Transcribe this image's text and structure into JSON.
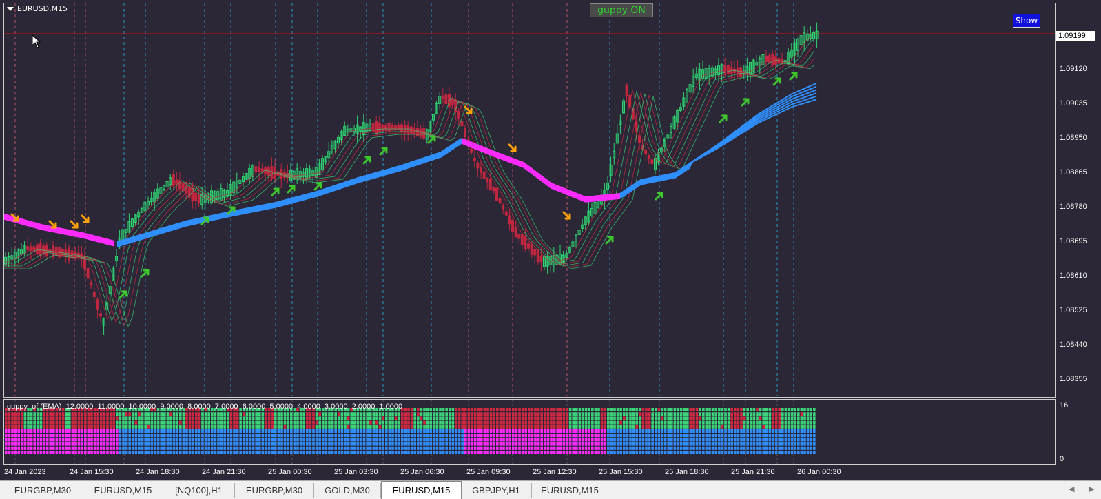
{
  "chart": {
    "symbol_title": "EURUSD,M15",
    "guppy_button_label": "guppy ON",
    "show_button_label": "Show",
    "current_price": "1.09199",
    "price_axis_labels": [
      "1.09120",
      "1.09035",
      "1.08950",
      "1.08865",
      "1.08780",
      "1.08695",
      "1.08610",
      "1.08525",
      "1.08440",
      "1.08355"
    ],
    "indicator_title": "guppy  of (EMA)  12.0000  11.0000  10.0000  9.0000  8.0000  7.0000  6.0000  5.0000  4.0000  3.0000  2.0000  1.0000",
    "indicator_scale_top": "16",
    "indicator_scale_bottom": "0",
    "time_labels": [
      "24 Jan 2023",
      "24 Jan 15:30",
      "24 Jan 18:30",
      "24 Jan 21:30",
      "25 Jan 00:30",
      "25 Jan 03:30",
      "25 Jan 06:30",
      "25 Jan 09:30",
      "25 Jan 12:30",
      "25 Jan 15:30",
      "25 Jan 18:30",
      "25 Jan 21:30",
      "26 Jan 00:30"
    ],
    "colors": {
      "background": "#2b2736",
      "bull_candle": "#2ed573",
      "bear_candle": "#c0263f",
      "short_ema_bull": "#3cd47a",
      "short_ema_bear": "#d02840",
      "long_ema_bull": "#2f8fff",
      "long_ema_bear": "#ff2bff",
      "buy_arrow": "#3ec62c",
      "sell_arrow": "#ffa20a",
      "current_price_line": "#d01010"
    }
  },
  "tabs": [
    {
      "label": "EURGBP,M30",
      "active": false
    },
    {
      "label": "EURUSD,M15",
      "active": false
    },
    {
      "label": "[NQ100],H1",
      "active": false
    },
    {
      "label": "EURGBP,M30",
      "active": false
    },
    {
      "label": "GOLD,M30",
      "active": false
    },
    {
      "label": "EURUSD,M15",
      "active": true
    },
    {
      "label": "GBPJPY,H1",
      "active": false
    },
    {
      "label": "EURUSD,M15",
      "active": false
    }
  ]
}
